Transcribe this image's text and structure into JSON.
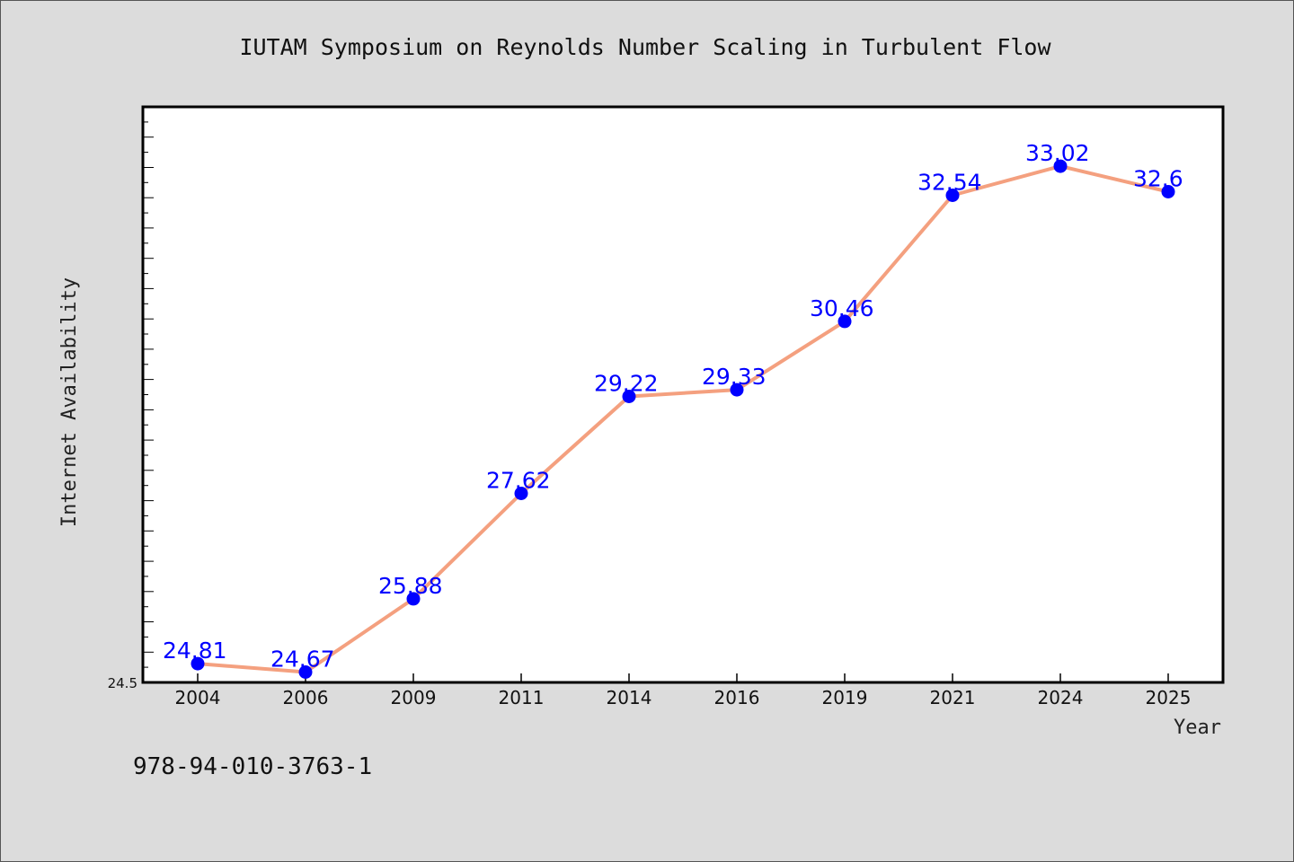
{
  "chart_data": {
    "type": "line",
    "title": "IUTAM Symposium on Reynolds Number Scaling in Turbulent Flow",
    "xlabel": "Year",
    "ylabel": "Internet Availability",
    "categories": [
      "2004",
      "2006",
      "2009",
      "2011",
      "2014",
      "2016",
      "2019",
      "2021",
      "2024",
      "2025"
    ],
    "series": [
      {
        "values": [
          24.81,
          24.67,
          25.88,
          27.62,
          29.22,
          29.33,
          30.46,
          32.54,
          33.02,
          32.6
        ]
      }
    ],
    "data_labels": [
      "24.81",
      "24.67",
      "25.88",
      "27.62",
      "29.22",
      "29.33",
      "30.46",
      "32.54",
      "33.02",
      "32.6"
    ],
    "y_tick_labels": [
      "24.5"
    ],
    "ylim": [
      24.5,
      34.0
    ],
    "grid": false,
    "legend": "none",
    "colors": {
      "line": "#f4a07f",
      "marker": "#0000ff",
      "label": "#0000ff",
      "plot_bg": "#ffffff",
      "page_bg": "#dcdcdc"
    }
  },
  "footer": {
    "isbn": "978-94-010-3763-1"
  }
}
